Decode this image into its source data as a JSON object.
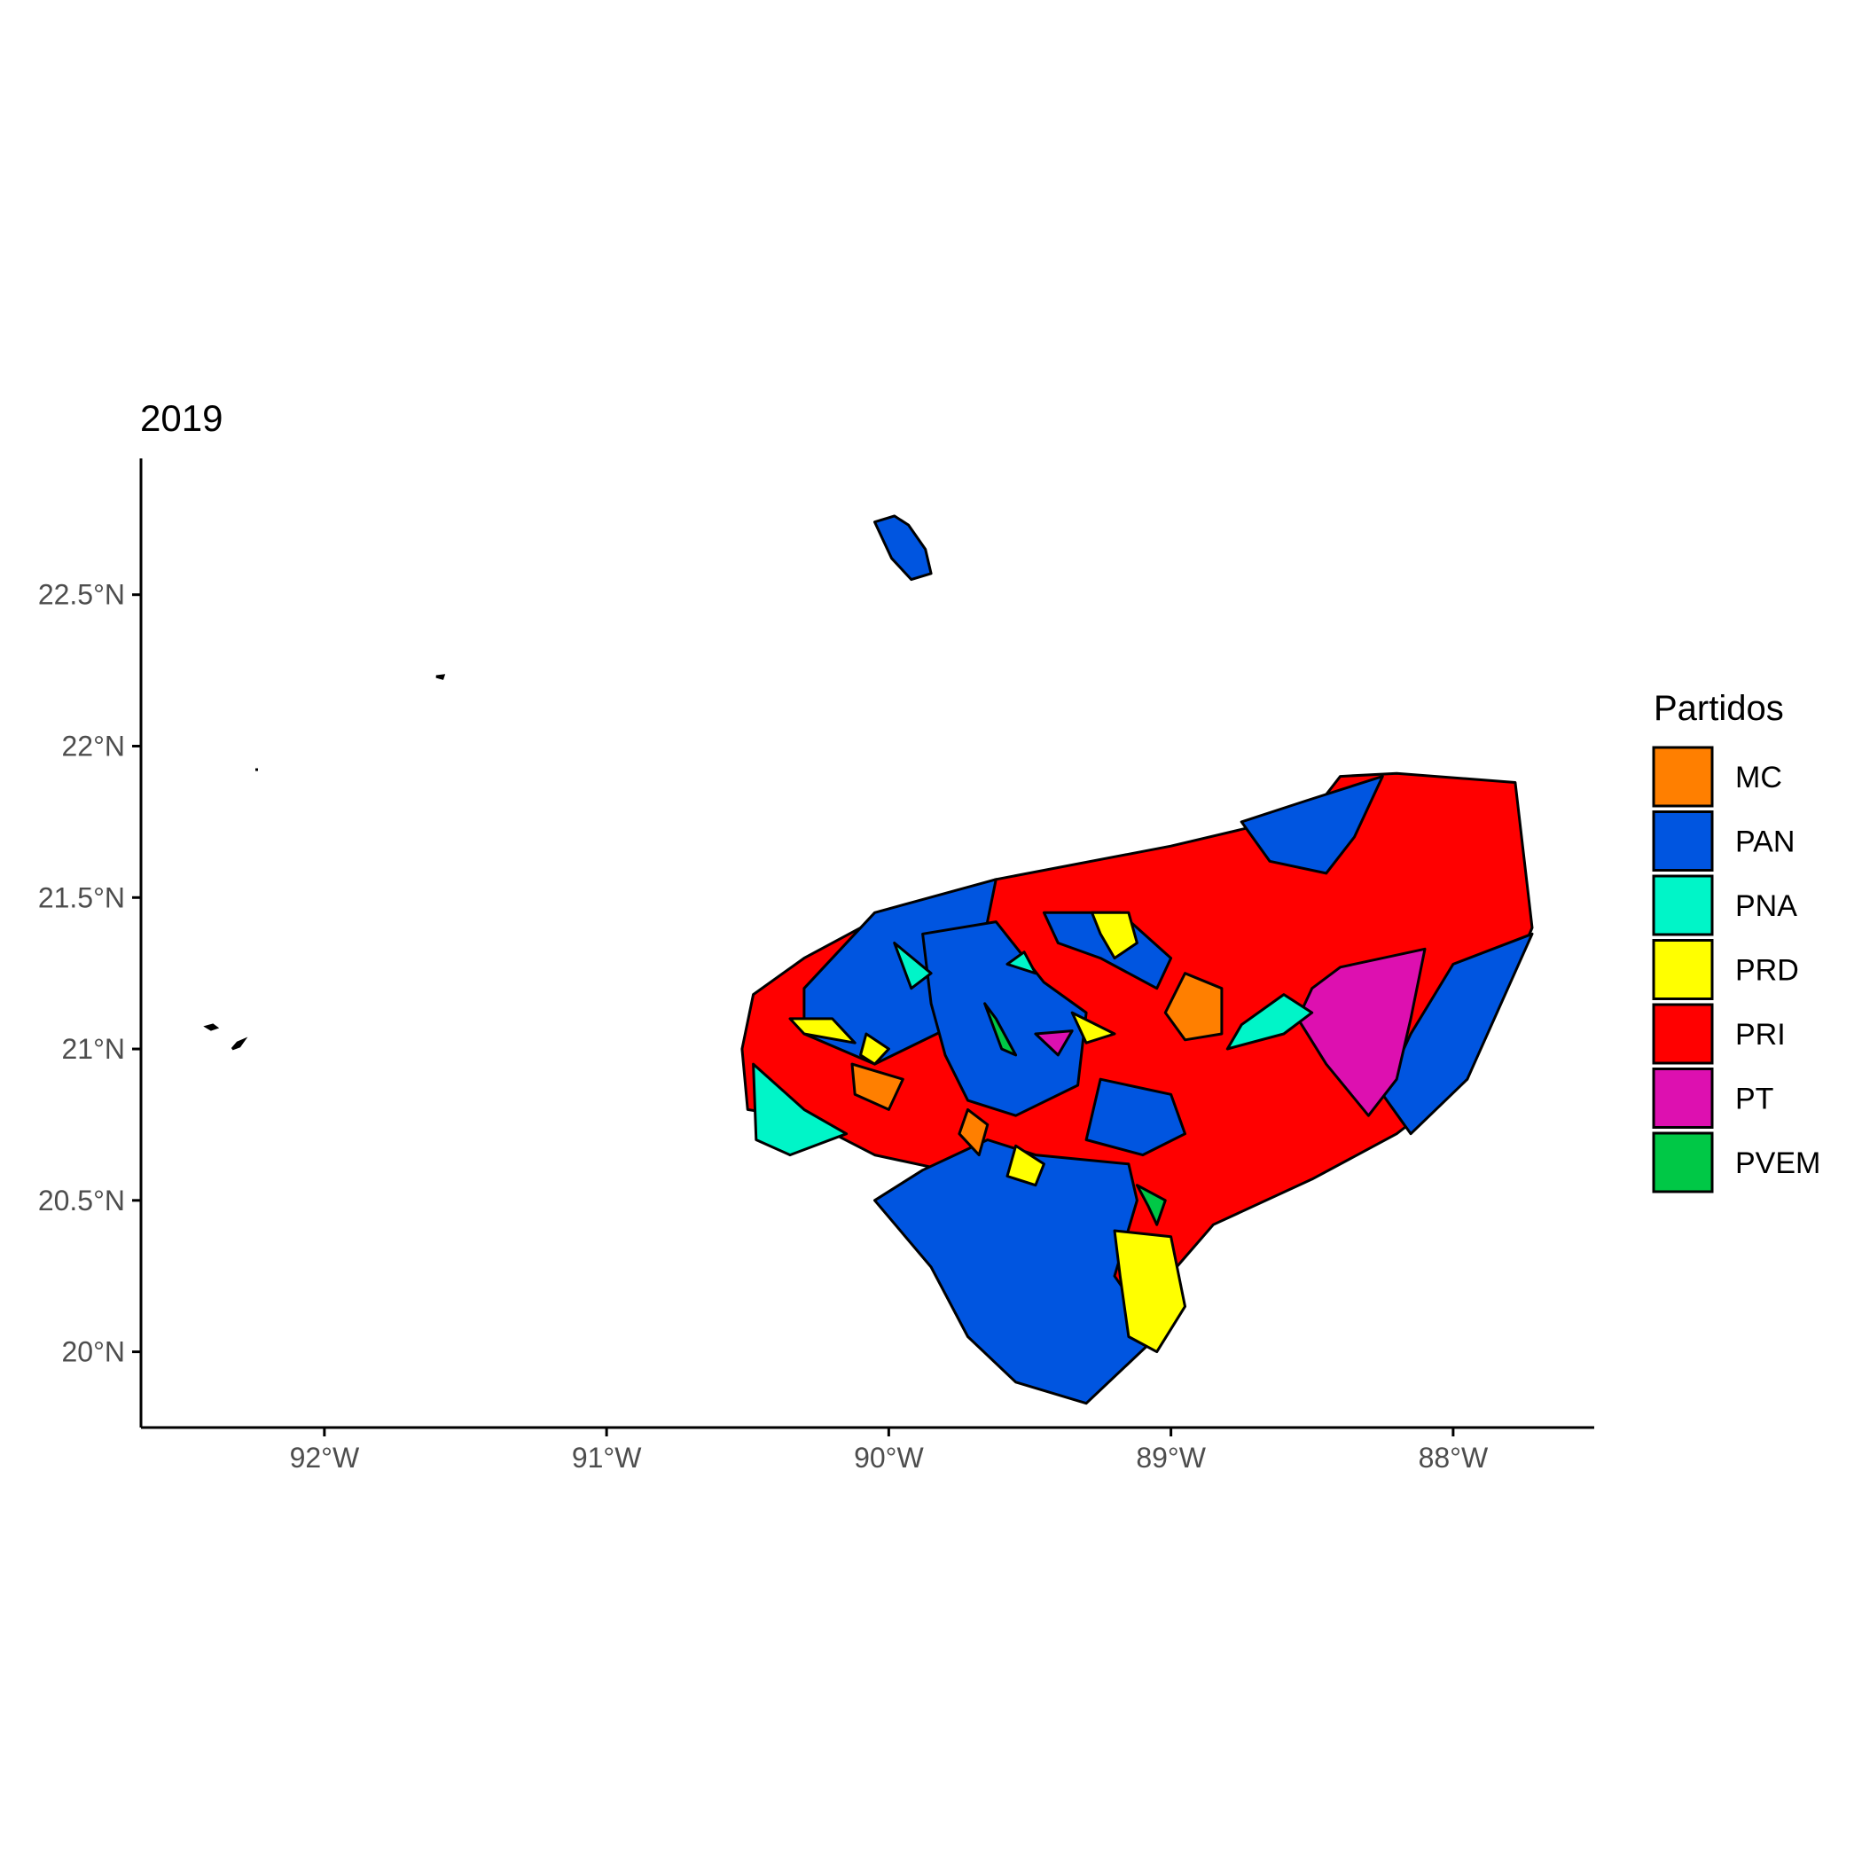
{
  "title": "2019",
  "chart_data": {
    "type": "choropleth",
    "title": "2019",
    "xlim": [
      -92.65,
      -87.5
    ],
    "ylim": [
      19.75,
      22.95
    ],
    "x_ticks": [
      {
        "value": -92,
        "label": "92°W"
      },
      {
        "value": -91,
        "label": "91°W"
      },
      {
        "value": -90,
        "label": "90°W"
      },
      {
        "value": -89,
        "label": "89°W"
      },
      {
        "value": -88,
        "label": "88°W"
      }
    ],
    "y_ticks": [
      {
        "value": 20.0,
        "label": "20°N"
      },
      {
        "value": 20.5,
        "label": "20.5°N"
      },
      {
        "value": 21.0,
        "label": "21°N"
      },
      {
        "value": 21.5,
        "label": "21.5°N"
      },
      {
        "value": 22.0,
        "label": "22°N"
      },
      {
        "value": 22.5,
        "label": "22.5°N"
      }
    ],
    "legend": {
      "title": "Partidos",
      "position": "right",
      "entries": [
        {
          "label": "MC",
          "color": "#ff7f00"
        },
        {
          "label": "PAN",
          "color": "#0055e0"
        },
        {
          "label": "PNA",
          "color": "#00f5c8"
        },
        {
          "label": "PRD",
          "color": "#ffff00"
        },
        {
          "label": "PRI",
          "color": "#ff0000"
        },
        {
          "label": "PT",
          "color": "#dd10b0"
        },
        {
          "label": "PVEM",
          "color": "#00c846"
        }
      ]
    },
    "regions": [
      {
        "party": "PRI",
        "coords": [
          [
            -90.52,
            21.0
          ],
          [
            -90.48,
            21.18
          ],
          [
            -90.3,
            21.3
          ],
          [
            -90.0,
            21.45
          ],
          [
            -89.62,
            21.56
          ],
          [
            -89.0,
            21.67
          ],
          [
            -88.5,
            21.78
          ],
          [
            -88.4,
            21.9
          ],
          [
            -88.2,
            21.91
          ],
          [
            -87.78,
            21.88
          ],
          [
            -87.72,
            21.4
          ],
          [
            -87.95,
            20.9
          ],
          [
            -88.2,
            20.72
          ],
          [
            -88.5,
            20.57
          ],
          [
            -88.85,
            20.42
          ],
          [
            -88.98,
            20.28
          ],
          [
            -89.08,
            20.15
          ],
          [
            -89.25,
            20.2
          ],
          [
            -89.35,
            20.5
          ],
          [
            -89.8,
            20.6
          ],
          [
            -90.05,
            20.65
          ],
          [
            -90.3,
            20.77
          ],
          [
            -90.5,
            20.8
          ]
        ]
      },
      {
        "party": "PAN",
        "coords": [
          [
            -90.3,
            21.2
          ],
          [
            -90.05,
            21.45
          ],
          [
            -89.62,
            21.56
          ],
          [
            -89.72,
            21.1
          ],
          [
            -90.05,
            20.95
          ],
          [
            -90.3,
            21.05
          ]
        ]
      },
      {
        "party": "PAN",
        "coords": [
          [
            -89.88,
            21.38
          ],
          [
            -89.62,
            21.42
          ],
          [
            -89.45,
            21.22
          ],
          [
            -89.3,
            21.12
          ],
          [
            -89.33,
            20.88
          ],
          [
            -89.55,
            20.78
          ],
          [
            -89.72,
            20.83
          ],
          [
            -89.8,
            20.98
          ],
          [
            -89.85,
            21.15
          ]
        ]
      },
      {
        "party": "PAN",
        "coords": [
          [
            -89.88,
            20.6
          ],
          [
            -89.65,
            20.7
          ],
          [
            -89.48,
            20.65
          ],
          [
            -89.15,
            20.62
          ],
          [
            -89.12,
            20.5
          ],
          [
            -89.2,
            20.25
          ],
          [
            -89.05,
            20.05
          ],
          [
            -89.3,
            19.83
          ],
          [
            -89.55,
            19.9
          ],
          [
            -89.72,
            20.05
          ],
          [
            -89.85,
            20.28
          ],
          [
            -90.05,
            20.5
          ]
        ]
      },
      {
        "party": "PAN",
        "coords": [
          [
            -88.52,
            21.82
          ],
          [
            -88.25,
            21.9
          ],
          [
            -88.35,
            21.7
          ],
          [
            -88.45,
            21.58
          ],
          [
            -88.65,
            21.62
          ],
          [
            -88.75,
            21.75
          ]
        ]
      },
      {
        "party": "PAN",
        "coords": [
          [
            -87.72,
            21.38
          ],
          [
            -88.0,
            21.28
          ],
          [
            -88.15,
            21.05
          ],
          [
            -88.25,
            20.85
          ],
          [
            -88.15,
            20.72
          ],
          [
            -87.95,
            20.9
          ]
        ]
      },
      {
        "party": "PAN",
        "coords": [
          [
            -89.45,
            21.45
          ],
          [
            -89.18,
            21.45
          ],
          [
            -89.0,
            21.3
          ],
          [
            -89.05,
            21.2
          ],
          [
            -89.25,
            21.3
          ],
          [
            -89.4,
            21.35
          ]
        ]
      },
      {
        "party": "PAN",
        "coords": [
          [
            -89.25,
            20.9
          ],
          [
            -89.0,
            20.85
          ],
          [
            -88.95,
            20.72
          ],
          [
            -89.1,
            20.65
          ],
          [
            -89.3,
            20.7
          ]
        ]
      },
      {
        "party": "PAN",
        "coords": [
          [
            -89.93,
            22.73
          ],
          [
            -89.87,
            22.65
          ],
          [
            -89.85,
            22.57
          ],
          [
            -89.92,
            22.55
          ],
          [
            -89.99,
            22.62
          ],
          [
            -90.05,
            22.74
          ],
          [
            -89.98,
            22.76
          ]
        ]
      },
      {
        "party": "PT",
        "coords": [
          [
            -88.4,
            21.27
          ],
          [
            -88.1,
            21.33
          ],
          [
            -88.15,
            21.1
          ],
          [
            -88.2,
            20.9
          ],
          [
            -88.3,
            20.78
          ],
          [
            -88.45,
            20.95
          ],
          [
            -88.55,
            21.1
          ],
          [
            -88.5,
            21.2
          ]
        ]
      },
      {
        "party": "PT",
        "coords": [
          [
            -89.48,
            21.05
          ],
          [
            -89.35,
            21.06
          ],
          [
            -89.4,
            20.98
          ]
        ]
      },
      {
        "party": "MC",
        "coords": [
          [
            -88.95,
            21.25
          ],
          [
            -88.82,
            21.2
          ],
          [
            -88.82,
            21.05
          ],
          [
            -88.95,
            21.03
          ],
          [
            -89.02,
            21.12
          ]
        ]
      },
      {
        "party": "MC",
        "coords": [
          [
            -90.13,
            20.95
          ],
          [
            -89.95,
            20.9
          ],
          [
            -90.0,
            20.8
          ],
          [
            -90.12,
            20.85
          ]
        ]
      },
      {
        "party": "MC",
        "coords": [
          [
            -89.72,
            20.8
          ],
          [
            -89.65,
            20.75
          ],
          [
            -89.68,
            20.65
          ],
          [
            -89.75,
            20.72
          ]
        ]
      },
      {
        "party": "PNA",
        "coords": [
          [
            -90.48,
            20.95
          ],
          [
            -90.3,
            20.8
          ],
          [
            -90.15,
            20.72
          ],
          [
            -90.35,
            20.65
          ],
          [
            -90.47,
            20.7
          ]
        ]
      },
      {
        "party": "PNA",
        "coords": [
          [
            -88.8,
            21.0
          ],
          [
            -88.6,
            21.05
          ],
          [
            -88.5,
            21.12
          ],
          [
            -88.6,
            21.18
          ],
          [
            -88.75,
            21.08
          ]
        ]
      },
      {
        "party": "PNA",
        "coords": [
          [
            -89.98,
            21.35
          ],
          [
            -89.92,
            21.2
          ],
          [
            -89.85,
            21.25
          ]
        ]
      },
      {
        "party": "PNA",
        "coords": [
          [
            -89.58,
            21.28
          ],
          [
            -89.48,
            21.25
          ],
          [
            -89.52,
            21.32
          ]
        ]
      },
      {
        "party": "PRD",
        "coords": [
          [
            -90.35,
            21.1
          ],
          [
            -90.2,
            21.1
          ],
          [
            -90.12,
            21.02
          ],
          [
            -90.3,
            21.05
          ]
        ]
      },
      {
        "party": "PRD",
        "coords": [
          [
            -90.08,
            21.05
          ],
          [
            -90.0,
            21.0
          ],
          [
            -90.05,
            20.95
          ],
          [
            -90.1,
            20.98
          ]
        ]
      },
      {
        "party": "PRD",
        "coords": [
          [
            -89.28,
            21.45
          ],
          [
            -89.15,
            21.45
          ],
          [
            -89.12,
            21.35
          ],
          [
            -89.2,
            21.3
          ],
          [
            -89.25,
            21.38
          ]
        ]
      },
      {
        "party": "PRD",
        "coords": [
          [
            -89.35,
            21.12
          ],
          [
            -89.2,
            21.05
          ],
          [
            -89.3,
            21.02
          ]
        ]
      },
      {
        "party": "PRD",
        "coords": [
          [
            -89.55,
            20.68
          ],
          [
            -89.45,
            20.62
          ],
          [
            -89.48,
            20.55
          ],
          [
            -89.58,
            20.58
          ]
        ]
      },
      {
        "party": "PRD",
        "coords": [
          [
            -89.2,
            20.4
          ],
          [
            -89.0,
            20.38
          ],
          [
            -88.95,
            20.15
          ],
          [
            -89.05,
            20.0
          ],
          [
            -89.15,
            20.05
          ],
          [
            -89.18,
            20.25
          ]
        ]
      },
      {
        "party": "PVEM",
        "coords": [
          [
            -89.66,
            21.15
          ],
          [
            -89.6,
            21.0
          ],
          [
            -89.55,
            20.98
          ],
          [
            -89.62,
            21.1
          ]
        ]
      },
      {
        "party": "PVEM",
        "coords": [
          [
            -89.12,
            20.55
          ],
          [
            -89.02,
            20.5
          ],
          [
            -89.05,
            20.42
          ],
          [
            -89.08,
            20.48
          ]
        ]
      }
    ]
  }
}
